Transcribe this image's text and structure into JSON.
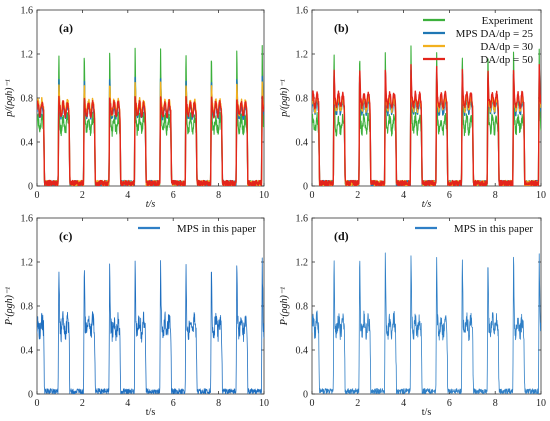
{
  "chart_data": [
    {
      "panel": "(a)",
      "type": "line",
      "xlabel": "t/s",
      "ylabel": "p/(ρgh)⁻¹",
      "xlim": [
        0,
        10
      ],
      "ylim": [
        0,
        1.6
      ],
      "xticks": [
        "0",
        "2",
        "4",
        "6",
        "8",
        "10"
      ],
      "yticks": [
        "0",
        "0.4",
        "0.8",
        "1.2",
        "1.6"
      ],
      "period": 1.12,
      "series": [
        {
          "name": "Experiment",
          "color": "#3cb03c",
          "peak": 1.28,
          "plateau": 0.56
        },
        {
          "name": "MPS DA/dp = 25",
          "color": "#1f77b4",
          "peak": 1.0,
          "plateau": 0.68
        },
        {
          "name": "DA/dp = 30",
          "color": "#f2b01e",
          "peak": 0.95,
          "plateau": 0.72
        },
        {
          "name": "DA/dp = 50",
          "color": "#e3241b",
          "peak": 0.82,
          "plateau": 0.7
        }
      ]
    },
    {
      "panel": "(b)",
      "type": "line",
      "xlabel": "t/s",
      "ylabel": "p/(ρgh)⁻¹",
      "xlim": [
        0,
        10
      ],
      "ylim": [
        0,
        1.6
      ],
      "xticks": [
        "0",
        "2",
        "4",
        "6",
        "8",
        "10"
      ],
      "yticks": [
        "0",
        "0.4",
        "0.8",
        "1.2",
        "1.6"
      ],
      "period": 1.12,
      "legend": {
        "position": "top-right",
        "entries": [
          {
            "label": "Experiment",
            "color": "#3cb03c"
          },
          {
            "label": "MPS DA/dp = 25",
            "color": "#1f77b4"
          },
          {
            "label": "DA/dp = 30",
            "color": "#f2b01e"
          },
          {
            "label": "DA/dp = 50",
            "color": "#e3241b"
          }
        ]
      },
      "series": [
        {
          "name": "Experiment",
          "color": "#3cb03c",
          "peak": 1.27,
          "plateau": 0.56
        },
        {
          "name": "MPS DA/dp = 25",
          "color": "#1f77b4",
          "peak": 1.05,
          "plateau": 0.72
        },
        {
          "name": "DA/dp = 30",
          "color": "#f2b01e",
          "peak": 1.0,
          "plateau": 0.75
        },
        {
          "name": "DA/dp = 50",
          "color": "#e3241b",
          "peak": 1.1,
          "plateau": 0.78
        }
      ]
    },
    {
      "panel": "(c)",
      "type": "line",
      "xlabel": "t/s",
      "ylabel": "P·(ρgh)⁻¹",
      "xlim": [
        0,
        10
      ],
      "ylim": [
        0,
        1.6
      ],
      "xticks": [
        "0",
        "2",
        "4",
        "6",
        "8",
        "10"
      ],
      "yticks": [
        "0",
        "0.4",
        "0.8",
        "1.2",
        "1.6"
      ],
      "period": 1.12,
      "legend": {
        "position": "top-right",
        "entries": [
          {
            "label": "MPS in this paper",
            "color": "#2f7fc6"
          }
        ]
      },
      "series": [
        {
          "name": "MPS in this paper",
          "color": "#1f6fc0",
          "peak": 1.22,
          "plateau": 0.62,
          "noise": 0.18
        }
      ]
    },
    {
      "panel": "(d)",
      "type": "line",
      "xlabel": "t/s",
      "ylabel": "P·(ρgh)⁻¹",
      "xlim": [
        0,
        10
      ],
      "ylim": [
        0,
        1.6
      ],
      "xticks": [
        "0",
        "2",
        "4",
        "6",
        "8",
        "10"
      ],
      "yticks": [
        "0",
        "0.4",
        "0.8",
        "1.2",
        "1.6"
      ],
      "period": 1.12,
      "legend": {
        "position": "top-right",
        "entries": [
          {
            "label": "MPS in this paper",
            "color": "#2f7fc6"
          }
        ]
      },
      "series": [
        {
          "name": "MPS in this paper",
          "color": "#2f7fc6",
          "peak": 1.3,
          "plateau": 0.62,
          "noise": 0.16
        }
      ]
    }
  ]
}
